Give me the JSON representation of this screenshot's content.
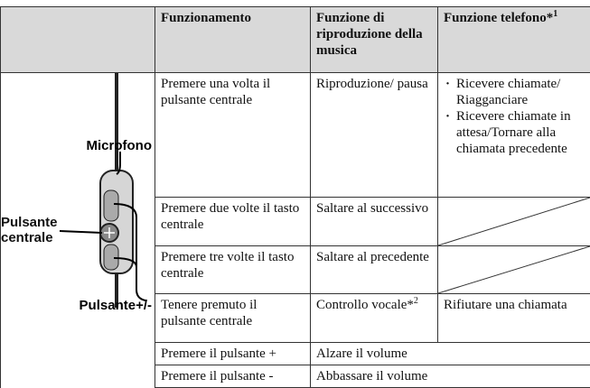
{
  "table": {
    "header": [
      "Funzionamento",
      "Funzione di riproduzione della musica",
      {
        "text": "Funzione telefono*",
        "sup": "1"
      }
    ],
    "labels": {
      "mic": "Microfono",
      "center": "Pulsante centrale",
      "plusminus": "Pulsante+/-"
    },
    "rows": [
      [
        "Premere una volta il pulsante centrale",
        "Riproduzione/ pausa",
        [
          "Ricevere chiamate/ Riagganciare",
          "Ricevere chiamate in attesa/Tornare alla chiamata precedente"
        ]
      ],
      [
        "Premere due volte il tasto centrale",
        "Saltare al successivo"
      ],
      [
        "Premere tre volte il tasto centrale",
        "Saltare al precedente"
      ],
      [
        "Tenere premuto il pulsante centrale",
        {
          "text": "Controllo vocale*",
          "sup": "2"
        },
        "Rifiutare una chiamata"
      ],
      [
        "Premere il pulsante +",
        "Alzare il volume"
      ],
      [
        "Premere il pulsante -",
        "Abbassare il volume"
      ]
    ]
  }
}
